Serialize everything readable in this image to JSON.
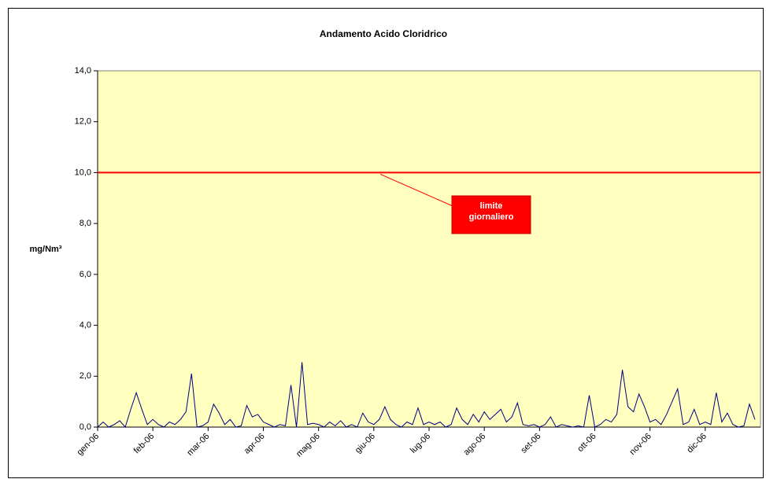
{
  "chart_data": {
    "type": "line",
    "title": "Andamento Acido Cloridrico",
    "y_label": "mg/Nm³",
    "categories": [
      "gen-06",
      null,
      null,
      null,
      null,
      null,
      null,
      null,
      null,
      null,
      "feb-06",
      null,
      null,
      null,
      null,
      null,
      null,
      null,
      null,
      null,
      "mar-06",
      null,
      null,
      null,
      null,
      null,
      null,
      null,
      null,
      null,
      "apr-06",
      null,
      null,
      null,
      null,
      null,
      null,
      null,
      null,
      null,
      "mag-06",
      null,
      null,
      null,
      null,
      null,
      null,
      null,
      null,
      null,
      "giu-06",
      null,
      null,
      null,
      null,
      null,
      null,
      null,
      null,
      null,
      "lug-06",
      null,
      null,
      null,
      null,
      null,
      null,
      null,
      null,
      null,
      "ago-06",
      null,
      null,
      null,
      null,
      null,
      null,
      null,
      null,
      null,
      "set-06",
      null,
      null,
      null,
      null,
      null,
      null,
      null,
      null,
      null,
      "ott-06",
      null,
      null,
      null,
      null,
      null,
      null,
      null,
      null,
      null,
      "nov-06",
      null,
      null,
      null,
      null,
      null,
      null,
      null,
      null,
      null,
      "dic-06",
      null,
      null,
      null,
      null,
      null,
      null,
      null,
      null,
      null
    ],
    "series": [
      {
        "color": "#000080",
        "values": [
          0,
          0.2,
          0,
          0.1,
          0.25,
          0,
          0.7,
          1.35,
          0.7,
          0.1,
          0.3,
          0.1,
          0,
          0.2,
          0.1,
          0.3,
          0.6,
          2.1,
          0,
          0.05,
          0.2,
          0.9,
          0.55,
          0.1,
          0.3,
          0,
          0.05,
          0.85,
          0.4,
          0.5,
          0.2,
          0.1,
          0,
          0.1,
          0.05,
          1.65,
          0,
          2.55,
          0.1,
          0.15,
          0.1,
          0,
          0.2,
          0.05,
          0.25,
          0,
          0.1,
          0,
          0.55,
          0.2,
          0.1,
          0.3,
          0.8,
          0.3,
          0.1,
          0,
          0.2,
          0.1,
          0.75,
          0.1,
          0.2,
          0.1,
          0.2,
          0,
          0.1,
          0.75,
          0.3,
          0.1,
          0.5,
          0.2,
          0.6,
          0.3,
          0.5,
          0.7,
          0.2,
          0.4,
          0.95,
          0.1,
          0.05,
          0.1,
          0,
          0.1,
          0.4,
          0,
          0.1,
          0.05,
          0,
          0.05,
          0,
          1.25,
          0,
          0.1,
          0.3,
          0.2,
          0.5,
          2.25,
          0.8,
          0.6,
          1.3,
          0.8,
          0.2,
          0.3,
          0.1,
          0.5,
          1.0,
          1.5,
          0.1,
          0.2,
          0.7,
          0.1,
          0.2,
          0.1,
          1.35,
          0.2,
          0.55,
          0.1,
          0,
          0.05,
          0.9,
          0.3
        ]
      }
    ],
    "ylim": [
      0,
      14
    ],
    "yticks": [
      {
        "value": 0,
        "label": "0,0"
      },
      {
        "value": 2,
        "label": "2,0"
      },
      {
        "value": 4,
        "label": "4,0"
      },
      {
        "value": 6,
        "label": "6,0"
      },
      {
        "value": 8,
        "label": "8,0"
      },
      {
        "value": 10,
        "label": "10,0"
      },
      {
        "value": 12,
        "label": "12,0"
      },
      {
        "value": 14,
        "label": "14,0"
      }
    ],
    "plot_background": "#ffffc0",
    "limit": {
      "value": 10,
      "color": "#ff0000",
      "label": [
        "limite",
        "giornaliero"
      ]
    }
  }
}
